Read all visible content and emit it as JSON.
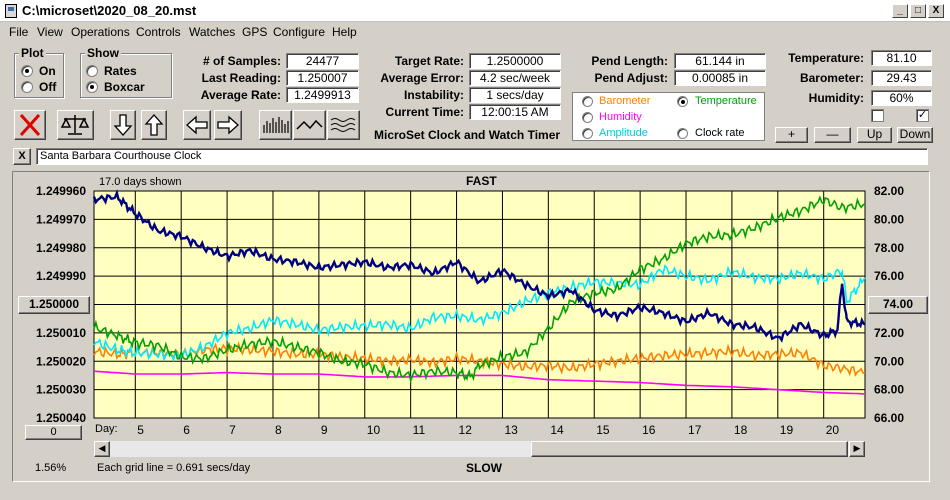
{
  "window": {
    "title": "C:\\microset\\2020_08_20.mst",
    "min": "_",
    "max": "□",
    "close": "X"
  },
  "menu": [
    "File",
    "View",
    "Operations",
    "Controls",
    "Watches",
    "GPS",
    "Configure",
    "Help"
  ],
  "plot_group": {
    "title": "Plot",
    "on": "On",
    "off": "Off",
    "selected": "On"
  },
  "show_group": {
    "title": "Show",
    "rates": "Rates",
    "boxcar": "Boxcar",
    "selected": "Boxcar"
  },
  "stats": {
    "samples_label": "# of Samples:",
    "samples": "24477",
    "last_label": "Last Reading:",
    "last": "1.250007",
    "avg_rate_label": "Average Rate:",
    "avg_rate": "1.2499913"
  },
  "target": {
    "target_label": "Target Rate:",
    "target": "1.2500000",
    "avg_err_label": "Average Error:",
    "avg_err": "4.2 sec/week",
    "instab_label": "Instability:",
    "instab": "1 secs/day",
    "time_label": "Current Time:",
    "time": "12:00:15 AM"
  },
  "pend": {
    "length_label": "Pend Length:",
    "length": "61.144 in",
    "adjust_label": "Pend Adjust:",
    "adjust": "0.00085 in"
  },
  "env": {
    "temp_label": "Temperature:",
    "temp": "81.10",
    "baro_label": "Barometer:",
    "baro": "29.43",
    "hum_label": "Humidity:",
    "hum": "60%"
  },
  "env_buttons": {
    "plus": "+",
    "minus": "—",
    "up": "Up",
    "down": "Down"
  },
  "series_select": {
    "barometer": "Barometer",
    "temperature": "Temperature",
    "humidity": "Humidity",
    "amplitude": "Amplitude",
    "clock_rate": "Clock rate",
    "selected": "Temperature"
  },
  "app_caption": "MicroSet Clock and Watch Timer",
  "clock_name": "Santa Barbara Courthouse Clock",
  "clear_label": "X",
  "colors": {
    "rate": "#000080",
    "temperature": "#00a000",
    "amplitude": "#00e8ff",
    "barometer": "#ff8000",
    "humidity": "#ff00ff",
    "plot_bg": "#ffffc0"
  },
  "chart_data": {
    "type": "line",
    "title": "FAST",
    "bottom_label": "SLOW",
    "days_shown": "17.0 days shown",
    "grid_note": "Each grid line = 0.691 secs/day",
    "percent": "1.56%",
    "left_center_button": "1.250000",
    "right_center_button": "74.00",
    "zero_button": "0",
    "xlabel": "Day:",
    "x_ticks": [
      "5",
      "6",
      "7",
      "8",
      "9",
      "10",
      "11",
      "12",
      "13",
      "14",
      "15",
      "16",
      "17",
      "18",
      "19",
      "20"
    ],
    "xlim": [
      4.1,
      20.9
    ],
    "y_left_ticks": [
      "1.249960",
      "1.249970",
      "1.249980",
      "1.249990",
      "1.250000",
      "1.250010",
      "1.250020",
      "1.250030",
      "1.250040"
    ],
    "ylim_left": [
      1.24996,
      1.25004
    ],
    "y_right_ticks": [
      "82.00",
      "80.00",
      "78.00",
      "76.00",
      "74.00",
      "72.00",
      "70.00",
      "68.00",
      "66.00"
    ],
    "ylim_right": [
      82,
      66
    ],
    "series": [
      {
        "key": "rate",
        "color": "#000080",
        "axis": "left",
        "x": [
          4.1,
          4.6,
          5.0,
          5.5,
          6.0,
          6.5,
          7.0,
          7.5,
          8.0,
          8.5,
          9.0,
          9.5,
          10.0,
          10.5,
          11.0,
          11.5,
          12.0,
          12.5,
          13.0,
          13.5,
          14.0,
          14.5,
          15.0,
          15.5,
          16.0,
          16.5,
          17.0,
          17.5,
          18.0,
          18.5,
          19.0,
          19.5,
          20.0,
          20.3,
          20.4,
          20.5,
          20.9
        ],
        "y": [
          1.249963,
          1.249962,
          1.249968,
          1.249974,
          1.249976,
          1.24998,
          1.249983,
          1.249981,
          1.249984,
          1.249985,
          1.249987,
          1.249986,
          1.249985,
          1.249987,
          1.249986,
          1.249989,
          1.249985,
          1.249992,
          1.249988,
          1.249993,
          1.249997,
          1.249995,
          1.250002,
          1.250004,
          1.250001,
          1.250003,
          1.250006,
          1.250003,
          1.250007,
          1.250008,
          1.250012,
          1.250007,
          1.250011,
          1.250009,
          1.249992,
          1.250006,
          1.250007
        ]
      },
      {
        "key": "temperature",
        "color": "#00a000",
        "axis": "right",
        "x": [
          4.1,
          4.6,
          5.0,
          5.5,
          6.0,
          6.5,
          7.0,
          7.5,
          8.0,
          8.5,
          9.0,
          9.5,
          10.0,
          10.5,
          11.0,
          11.5,
          12.0,
          12.3,
          12.5,
          13.0,
          13.5,
          14.0,
          14.5,
          15.0,
          15.5,
          16.0,
          16.5,
          17.0,
          17.5,
          18.0,
          18.5,
          19.0,
          19.5,
          20.0,
          20.4,
          20.9
        ],
        "y": [
          72.4,
          71.8,
          71.3,
          71.1,
          70.3,
          70.2,
          70.8,
          71.2,
          71.4,
          71.0,
          70.6,
          70.0,
          69.8,
          69.2,
          69.0,
          69.3,
          69.2,
          68.9,
          69.7,
          70.3,
          70.6,
          72.3,
          74.2,
          74.8,
          75.1,
          76.5,
          77.2,
          78.3,
          78.8,
          78.9,
          79.4,
          80.1,
          80.6,
          81.4,
          80.8,
          81.1
        ]
      },
      {
        "key": "amplitude",
        "color": "#00e8ff",
        "axis": "right",
        "x": [
          4.1,
          4.6,
          5.0,
          5.5,
          6.0,
          6.5,
          7.0,
          7.5,
          8.0,
          8.5,
          9.0,
          9.5,
          10.0,
          10.5,
          11.0,
          11.5,
          12.0,
          12.5,
          13.0,
          13.5,
          14.0,
          14.5,
          15.0,
          15.5,
          16.0,
          16.5,
          17.0,
          17.5,
          18.0,
          18.5,
          19.0,
          19.5,
          20.0,
          20.4,
          20.5,
          20.9
        ],
        "y": [
          71.4,
          70.8,
          70.6,
          70.5,
          70.4,
          71.0,
          72.0,
          72.3,
          72.9,
          72.6,
          72.2,
          72.4,
          72.5,
          72.6,
          72.3,
          73.1,
          73.2,
          72.9,
          73.4,
          74.2,
          74.8,
          75.2,
          75.6,
          75.5,
          75.4,
          76.5,
          76.0,
          75.7,
          76.3,
          75.9,
          75.8,
          76.2,
          75.8,
          76.4,
          74.2,
          75.9
        ]
      },
      {
        "key": "barometer",
        "color": "#ff8000",
        "axis": "right",
        "x": [
          4.1,
          4.6,
          5.0,
          5.5,
          6.0,
          6.5,
          7.0,
          7.5,
          8.0,
          8.5,
          9.0,
          9.5,
          10.0,
          10.5,
          11.0,
          11.5,
          12.0,
          12.5,
          13.0,
          13.5,
          14.0,
          14.5,
          15.0,
          15.5,
          16.0,
          16.5,
          17.0,
          17.5,
          18.0,
          18.5,
          19.0,
          19.5,
          20.0,
          20.4,
          20.9
        ],
        "y": [
          70.7,
          70.5,
          70.6,
          70.6,
          70.5,
          70.8,
          70.9,
          70.8,
          70.7,
          70.5,
          70.5,
          70.3,
          70.2,
          70.0,
          70.1,
          69.9,
          70.2,
          70.0,
          69.8,
          69.6,
          69.7,
          69.5,
          69.8,
          70.0,
          70.2,
          70.4,
          70.5,
          70.6,
          70.7,
          70.4,
          70.5,
          70.6,
          69.7,
          69.5,
          69.2
        ]
      },
      {
        "key": "humidity",
        "color": "#ff00ff",
        "axis": "right",
        "x": [
          4.1,
          5.0,
          6.0,
          7.0,
          8.0,
          9.0,
          10.0,
          11.0,
          12.0,
          13.0,
          14.0,
          15.0,
          16.0,
          17.0,
          18.0,
          19.0,
          20.0,
          20.9
        ],
        "y": [
          69.3,
          69.1,
          69.1,
          69.2,
          69.1,
          69.1,
          68.9,
          68.9,
          69.0,
          69.0,
          68.7,
          68.6,
          68.5,
          68.3,
          68.2,
          68.0,
          67.8,
          67.7
        ]
      }
    ]
  }
}
